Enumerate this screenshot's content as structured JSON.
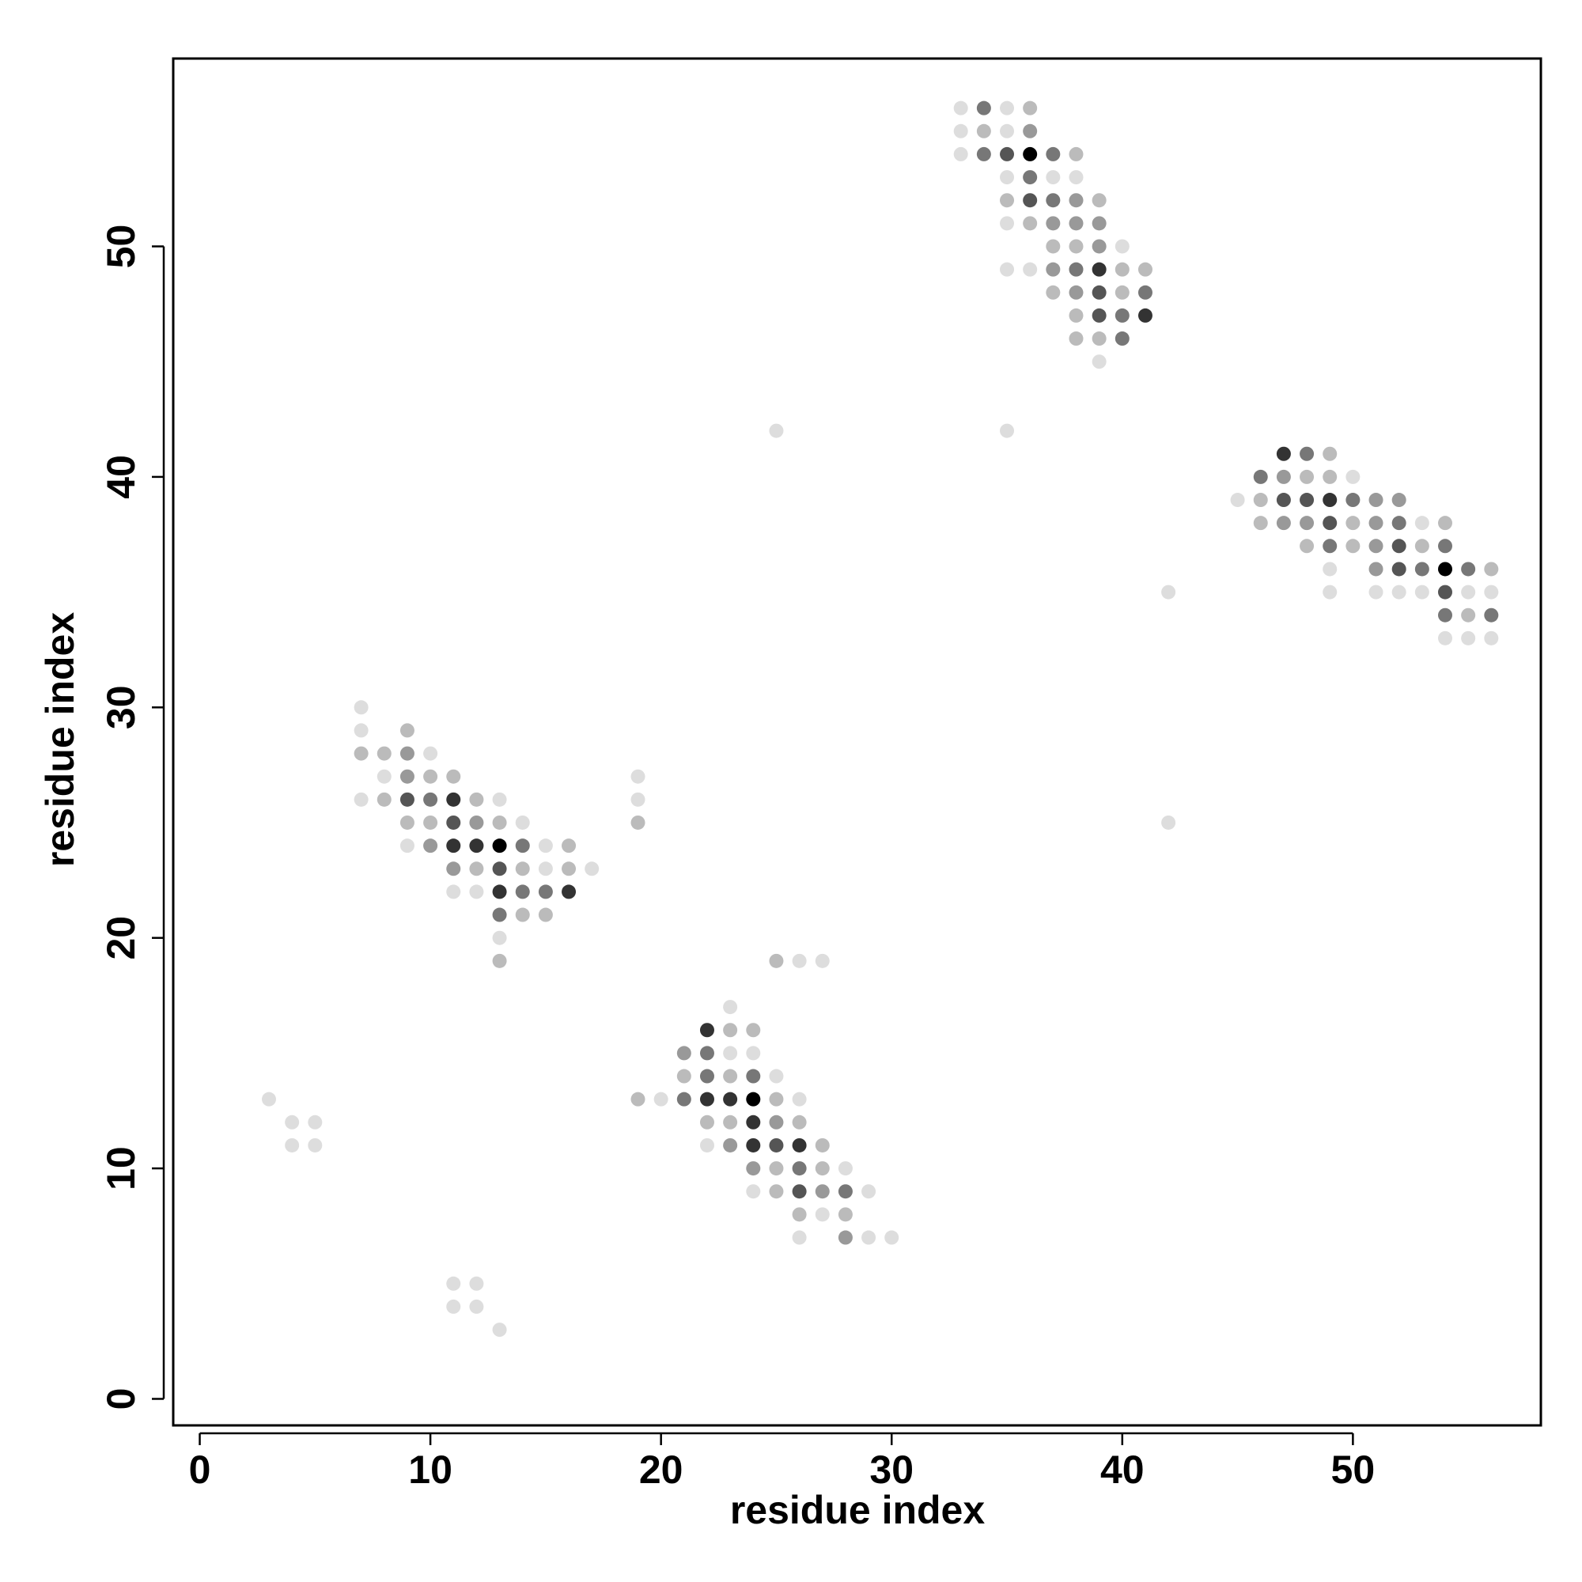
{
  "chart_data": {
    "type": "scatter",
    "xlabel": "residue index",
    "ylabel": "residue index",
    "xlim": [
      -1.15,
      58.15
    ],
    "ylim": [
      -1.15,
      58.15
    ],
    "xticks": [
      0,
      10,
      20,
      30,
      40,
      50
    ],
    "yticks": [
      0,
      10,
      20,
      30,
      40,
      50
    ],
    "x": [
      33,
      34,
      35,
      36,
      33,
      34,
      35,
      36,
      33,
      34,
      35,
      36,
      37,
      38,
      35,
      36,
      37,
      38,
      35,
      36,
      37,
      38,
      39,
      35,
      36,
      37,
      38,
      39,
      37,
      38,
      39,
      40,
      35,
      36,
      37,
      38,
      39,
      40,
      41,
      37,
      38,
      39,
      40,
      41,
      38,
      39,
      40,
      41,
      38,
      39,
      40,
      39,
      25,
      35,
      47,
      48,
      49,
      46,
      47,
      48,
      49,
      50,
      45,
      46,
      47,
      48,
      49,
      50,
      51,
      52,
      46,
      47,
      48,
      49,
      50,
      51,
      52,
      53,
      54,
      48,
      49,
      50,
      51,
      52,
      53,
      54,
      49,
      51,
      52,
      53,
      54,
      55,
      56,
      42,
      49,
      51,
      52,
      53,
      54,
      55,
      56,
      54,
      55,
      56,
      54,
      55,
      56,
      7,
      7,
      9,
      7,
      8,
      9,
      10,
      8,
      9,
      10,
      11,
      19,
      7,
      8,
      9,
      10,
      11,
      12,
      13,
      19,
      9,
      10,
      11,
      12,
      13,
      14,
      19,
      42,
      9,
      10,
      11,
      12,
      13,
      14,
      15,
      16,
      11,
      12,
      13,
      14,
      15,
      16,
      17,
      11,
      12,
      13,
      14,
      15,
      16,
      13,
      14,
      15,
      13,
      13,
      25,
      26,
      27,
      23,
      22,
      23,
      24,
      21,
      22,
      23,
      24,
      21,
      22,
      23,
      24,
      25,
      3,
      19,
      20,
      21,
      22,
      23,
      24,
      25,
      26,
      4,
      5,
      22,
      23,
      24,
      25,
      26,
      4,
      5,
      22,
      23,
      24,
      25,
      26,
      27,
      24,
      25,
      26,
      27,
      28,
      24,
      25,
      26,
      27,
      28,
      29,
      26,
      27,
      28,
      26,
      28,
      29,
      30,
      11,
      12,
      11,
      12,
      13
    ],
    "y": [
      56,
      56,
      56,
      56,
      55,
      55,
      55,
      55,
      54,
      54,
      54,
      54,
      54,
      54,
      53,
      53,
      53,
      53,
      52,
      52,
      52,
      52,
      52,
      51,
      51,
      51,
      51,
      51,
      50,
      50,
      50,
      50,
      49,
      49,
      49,
      49,
      49,
      49,
      49,
      48,
      48,
      48,
      48,
      48,
      47,
      47,
      47,
      47,
      46,
      46,
      46,
      45,
      42,
      42,
      41,
      41,
      41,
      40,
      40,
      40,
      40,
      40,
      39,
      39,
      39,
      39,
      39,
      39,
      39,
      39,
      38,
      38,
      38,
      38,
      38,
      38,
      38,
      38,
      38,
      37,
      37,
      37,
      37,
      37,
      37,
      37,
      36,
      36,
      36,
      36,
      36,
      36,
      36,
      35,
      35,
      35,
      35,
      35,
      35,
      35,
      35,
      34,
      34,
      34,
      33,
      33,
      33,
      30,
      29,
      29,
      28,
      28,
      28,
      28,
      27,
      27,
      27,
      27,
      27,
      26,
      26,
      26,
      26,
      26,
      26,
      26,
      26,
      25,
      25,
      25,
      25,
      25,
      25,
      25,
      25,
      24,
      24,
      24,
      24,
      24,
      24,
      24,
      24,
      23,
      23,
      23,
      23,
      23,
      23,
      23,
      22,
      22,
      22,
      22,
      22,
      22,
      21,
      21,
      21,
      20,
      19,
      19,
      19,
      19,
      17,
      16,
      16,
      16,
      15,
      15,
      15,
      15,
      14,
      14,
      14,
      14,
      14,
      13,
      13,
      13,
      13,
      13,
      13,
      13,
      13,
      13,
      12,
      12,
      12,
      12,
      12,
      12,
      12,
      11,
      11,
      11,
      11,
      11,
      11,
      11,
      11,
      10,
      10,
      10,
      10,
      10,
      9,
      9,
      9,
      9,
      9,
      9,
      8,
      8,
      8,
      7,
      7,
      7,
      7,
      5,
      5,
      4,
      4,
      3
    ],
    "colors": [
      "#ddd",
      "#777",
      "#ddd",
      "#bbb",
      "#ddd",
      "#bbb",
      "#ddd",
      "#999",
      "#ddd",
      "#777",
      "#555",
      "#000",
      "#777",
      "#bbb",
      "#ddd",
      "#777",
      "#ddd",
      "#ddd",
      "#bbb",
      "#555",
      "#777",
      "#999",
      "#bbb",
      "#ddd",
      "#bbb",
      "#999",
      "#999",
      "#999",
      "#bbb",
      "#bbb",
      "#999",
      "#ddd",
      "#ddd",
      "#ddd",
      "#999",
      "#777",
      "#333",
      "#bbb",
      "#bbb",
      "#bbb",
      "#999",
      "#555",
      "#bbb",
      "#777",
      "#bbb",
      "#555",
      "#777",
      "#333",
      "#bbb",
      "#bbb",
      "#777",
      "#ddd",
      "#ddd",
      "#ddd",
      "#333",
      "#777",
      "#bbb",
      "#777",
      "#999",
      "#bbb",
      "#bbb",
      "#ddd",
      "#ddd",
      "#bbb",
      "#555",
      "#555",
      "#333",
      "#777",
      "#999",
      "#999",
      "#bbb",
      "#999",
      "#999",
      "#555",
      "#bbb",
      "#999",
      "#777",
      "#ddd",
      "#bbb",
      "#bbb",
      "#777",
      "#bbb",
      "#999",
      "#555",
      "#bbb",
      "#777",
      "#ddd",
      "#999",
      "#555",
      "#777",
      "#000",
      "#777",
      "#bbb",
      "#ddd",
      "#ddd",
      "#ddd",
      "#ddd",
      "#ddd",
      "#555",
      "#ddd",
      "#ddd",
      "#777",
      "#bbb",
      "#777",
      "#ddd",
      "#ddd",
      "#ddd",
      "#ddd",
      "#ddd",
      "#bbb",
      "#bbb",
      "#bbb",
      "#999",
      "#ddd",
      "#ddd",
      "#999",
      "#bbb",
      "#bbb",
      "#ddd",
      "#ddd",
      "#bbb",
      "#555",
      "#777",
      "#333",
      "#bbb",
      "#ddd",
      "#ddd",
      "#bbb",
      "#bbb",
      "#555",
      "#999",
      "#bbb",
      "#ddd",
      "#bbb",
      "#ddd",
      "#ddd",
      "#999",
      "#333",
      "#333",
      "#000",
      "#777",
      "#ddd",
      "#bbb",
      "#999",
      "#bbb",
      "#555",
      "#bbb",
      "#ddd",
      "#bbb",
      "#ddd",
      "#ddd",
      "#ddd",
      "#333",
      "#777",
      "#777",
      "#333",
      "#777",
      "#bbb",
      "#bbb",
      "#ddd",
      "#bbb",
      "#bbb",
      "#ddd",
      "#ddd",
      "#ddd",
      "#333",
      "#bbb",
      "#bbb",
      "#999",
      "#777",
      "#ddd",
      "#ddd",
      "#bbb",
      "#777",
      "#bbb",
      "#777",
      "#ddd",
      "#ddd",
      "#bbb",
      "#ddd",
      "#777",
      "#333",
      "#333",
      "#000",
      "#bbb",
      "#ddd",
      "#ddd",
      "#ddd",
      "#bbb",
      "#bbb",
      "#333",
      "#999",
      "#bbb",
      "#ddd",
      "#ddd",
      "#ddd",
      "#999",
      "#333",
      "#555",
      "#333",
      "#bbb",
      "#999",
      "#bbb",
      "#777",
      "#bbb",
      "#ddd",
      "#ddd",
      "#bbb",
      "#555",
      "#999",
      "#777",
      "#ddd",
      "#bbb",
      "#ddd",
      "#bbb",
      "#ddd",
      "#999",
      "#ddd",
      "#ddd",
      "#ddd",
      "#ddd",
      "#ddd",
      "#ddd",
      "#ddd"
    ]
  }
}
